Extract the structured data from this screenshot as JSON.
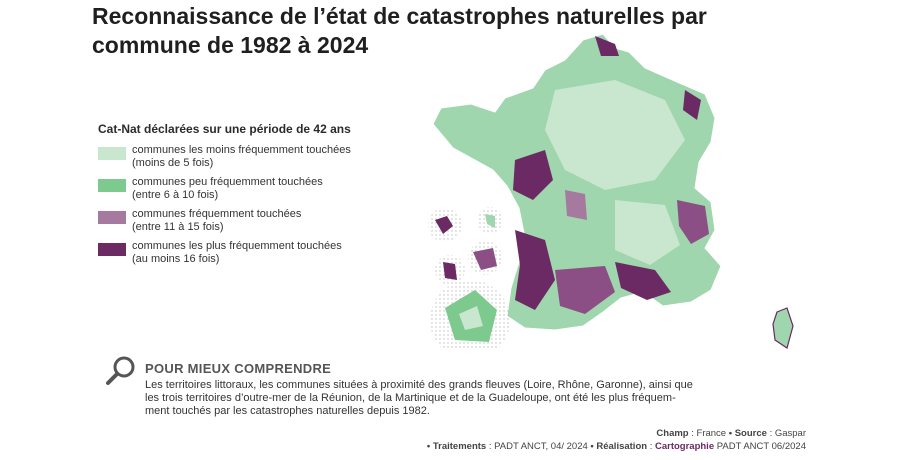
{
  "title": "Reconnaissance de l’état de catastrophes naturelles par commune de 1982 à 2024",
  "legend": {
    "title": "Cat-Nat déclarées sur une période de 42 ans",
    "items": [
      {
        "line1": "communes les moins fréquemment touchées",
        "line2": "(moins de 5 fois)",
        "color": "#c9e6cf"
      },
      {
        "line1": "communes peu fréquemment touchées",
        "line2": "(entre 6 à 10 fois)",
        "color": "#7dc98e"
      },
      {
        "line1": "communes fréquemment touchées",
        "line2": "(entre 11 à 15 fois)",
        "color": "#a67a9f"
      },
      {
        "line1": "communes les plus fréquemment touchées",
        "line2": "(au moins 16 fois)",
        "color": "#6b2a63"
      }
    ]
  },
  "explain": {
    "heading": "POUR MIEUX COMPRENDRE",
    "text1": "Les territoires littoraux, les communes situées à proximité des grands fleuves (Loire, Rhône, Garonne), ainsi que",
    "text2": "les trois territoires d’outre-mer de la Réunion, de la Martinique et de la Guadeloupe, ont été les plus fréquem-",
    "text3": "ment touchés par les catastrophes naturelles depuis 1982."
  },
  "footer": {
    "champ_label": "Champ",
    "champ_value": ": France",
    "source_label": "• Source",
    "source_value": ": Gaspar",
    "traitements_label": "• Traitements",
    "traitements_value": ": PADT ANCT, 04/ 2024",
    "realisation_label": "• Réalisation",
    "realisation_value": ":",
    "cartographie": "Cartographie",
    "realisation_rest": "PADT ANCT 06/2024"
  },
  "icons": {
    "explain": "magnifier-icon"
  }
}
